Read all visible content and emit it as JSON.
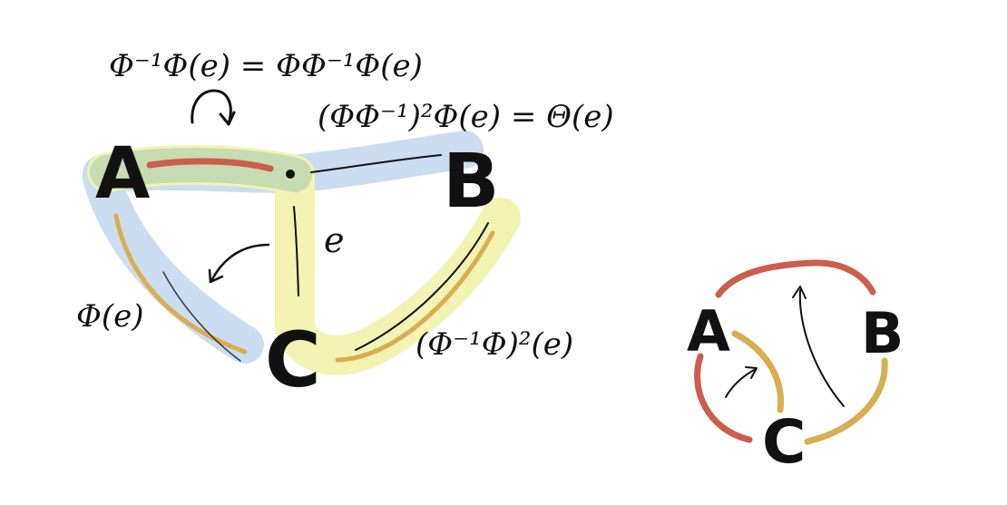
{
  "colors": {
    "blue_highlight": "#c9daf0",
    "yellow_highlight": "#f2f2b0",
    "green_overlap": "#c6dbb0",
    "red_stroke": "#cc5e4e",
    "gold_stroke": "#d8ae52",
    "ink": "#111111"
  },
  "left_graph": {
    "node_a": "A",
    "node_b": "B",
    "node_c": "C",
    "edge_label": "e",
    "label_phi_e": "Φ(e)",
    "label_top_formula": "Φ⁻¹Φ(e) = ΦΦ⁻¹Φ(e)",
    "label_cycle_formula": "(ΦΦ⁻¹)²Φ(e) = Θ(e)",
    "label_cb_formula": "(Φ⁻¹Φ)²(e)"
  },
  "right_graph": {
    "node_a": "A",
    "node_b": "B",
    "node_c": "C"
  }
}
